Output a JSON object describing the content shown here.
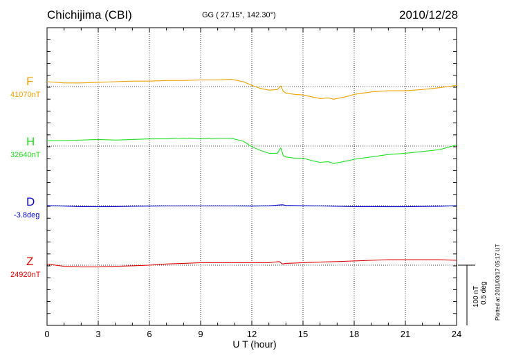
{
  "header": {
    "station": "Chichijima (CBI)",
    "coords": "GG ( 27.15°, 142.30°)",
    "date": "2010/12/28"
  },
  "scale": {
    "nt": "100 nT",
    "deg": "0.5 deg"
  },
  "plotted_note": "Plotted at 2011/03/17 05:17 UT",
  "chart_data": {
    "type": "line",
    "xlabel": "U T (hour)",
    "xlim": [
      0,
      24
    ],
    "xticks": [
      "0",
      "3",
      "6",
      "9",
      "12",
      "15",
      "18",
      "21",
      "24"
    ],
    "grid": "dotted vertical every 3 h; dotted baseline per component",
    "series": [
      {
        "name": "F",
        "baseline_label": "41070nT",
        "color": "#f0a000",
        "baseline_value": 41070,
        "unit": "nT",
        "x": [
          0,
          1,
          2,
          3,
          4,
          5,
          6,
          7,
          8,
          9,
          10,
          10.8,
          11.5,
          12,
          12.5,
          13,
          13.5,
          13.7,
          13.85,
          14,
          14.5,
          15,
          15.5,
          16,
          16.5,
          16.8,
          17.5,
          18,
          19,
          20,
          21,
          22,
          23,
          24
        ],
        "values": [
          41078,
          41076,
          41076,
          41077,
          41078,
          41079,
          41079,
          41080,
          41080,
          41081,
          41081,
          41082,
          41078,
          41072,
          41067,
          41064,
          41065,
          41071,
          41062,
          41059,
          41057,
          41056,
          41053,
          41050,
          41051,
          41049,
          41053,
          41057,
          41061,
          41063,
          41063,
          41065,
          41068,
          41072
        ]
      },
      {
        "name": "H",
        "baseline_label": "32640nT",
        "color": "#22e022",
        "baseline_value": 32640,
        "unit": "nT",
        "x": [
          0,
          1,
          2,
          3,
          4,
          5,
          6,
          7,
          8,
          9,
          10,
          10.8,
          11.5,
          12,
          12.5,
          13,
          13.5,
          13.7,
          13.85,
          14,
          14.5,
          15,
          15.5,
          16,
          16.5,
          16.8,
          17.5,
          18,
          19,
          20,
          21,
          22,
          23,
          24
        ],
        "values": [
          32649,
          32649,
          32650,
          32651,
          32650,
          32651,
          32652,
          32652,
          32653,
          32652,
          32653,
          32653,
          32648,
          32639,
          32633,
          32628,
          32628,
          32637,
          32624,
          32622,
          32620,
          32620,
          32616,
          32613,
          32614,
          32611,
          32615,
          32618,
          32622,
          32626,
          32628,
          32631,
          32634,
          32642
        ]
      },
      {
        "name": "D",
        "baseline_label": "-3.8deg",
        "color": "#0000cc",
        "baseline_value": -3.8,
        "unit": "deg",
        "x": [
          0,
          1,
          2,
          3,
          4,
          5,
          6,
          7,
          8,
          9,
          10,
          11,
          12,
          13,
          13.5,
          13.8,
          14,
          15,
          16,
          17,
          18,
          19,
          20,
          21,
          22,
          23,
          24
        ],
        "values": [
          -3.8,
          -3.804,
          -3.808,
          -3.809,
          -3.808,
          -3.806,
          -3.804,
          -3.803,
          -3.803,
          -3.803,
          -3.803,
          -3.803,
          -3.804,
          -3.802,
          -3.796,
          -3.793,
          -3.798,
          -3.801,
          -3.803,
          -3.806,
          -3.808,
          -3.808,
          -3.809,
          -3.809,
          -3.807,
          -3.805,
          -3.801
        ]
      },
      {
        "name": "Z",
        "baseline_label": "24920nT",
        "color": "#e00000",
        "baseline_value": 24920,
        "unit": "nT",
        "x": [
          0,
          0.5,
          1,
          2,
          3,
          4,
          5,
          6,
          7,
          8,
          9,
          10,
          11,
          12,
          13,
          13.6,
          13.8,
          14,
          15,
          16,
          17,
          18,
          19,
          20,
          21,
          22,
          23,
          24
        ],
        "values": [
          24922,
          24920,
          24918,
          24917,
          24917,
          24918,
          24919,
          24920,
          24922,
          24923,
          24924,
          24924,
          24924,
          24924,
          24924,
          24926,
          24922,
          24923,
          24924,
          24925,
          24926,
          24927,
          24928,
          24929,
          24929,
          24929,
          24929,
          24928
        ]
      }
    ]
  }
}
